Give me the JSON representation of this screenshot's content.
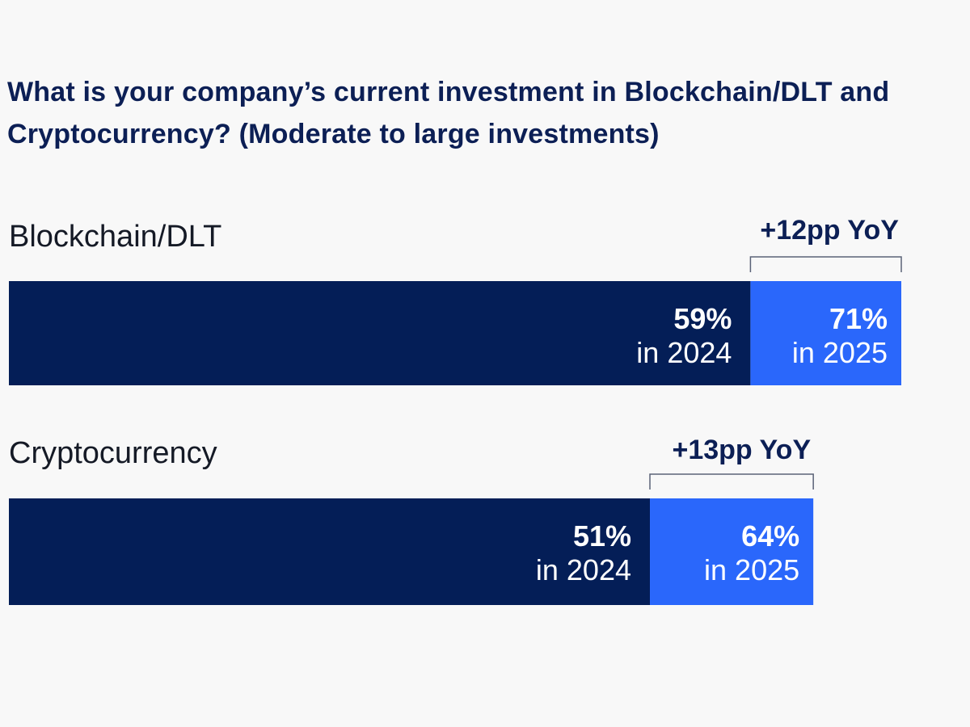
{
  "title": "What is your company’s current investment in Blockchain/DLT and Cryptocurrency? (Moderate to large investments)",
  "colors": {
    "background": "#f8f8f8",
    "bar_2024": "#041e57",
    "bar_2025": "#2a67fb",
    "title_text": "#0c1f55",
    "bracket": "#5a6277"
  },
  "chart_data": {
    "type": "bar",
    "orientation": "horizontal",
    "stacked_comparison": true,
    "categories": [
      "Blockchain/DLT",
      "Cryptocurrency"
    ],
    "series": [
      {
        "name": "2024",
        "values": [
          59,
          51
        ],
        "value_labels": [
          "59%",
          "51%"
        ],
        "year_labels": [
          "in 2024",
          "in 2024"
        ]
      },
      {
        "name": "2025",
        "values": [
          71,
          64
        ],
        "value_labels": [
          "71%",
          "64%"
        ],
        "year_labels": [
          "in 2025",
          "in 2025"
        ]
      }
    ],
    "annotations": [
      "+12pp YoY",
      "+13pp YoY"
    ],
    "xlim": [
      0,
      80
    ],
    "grid": false,
    "legend": "none"
  }
}
